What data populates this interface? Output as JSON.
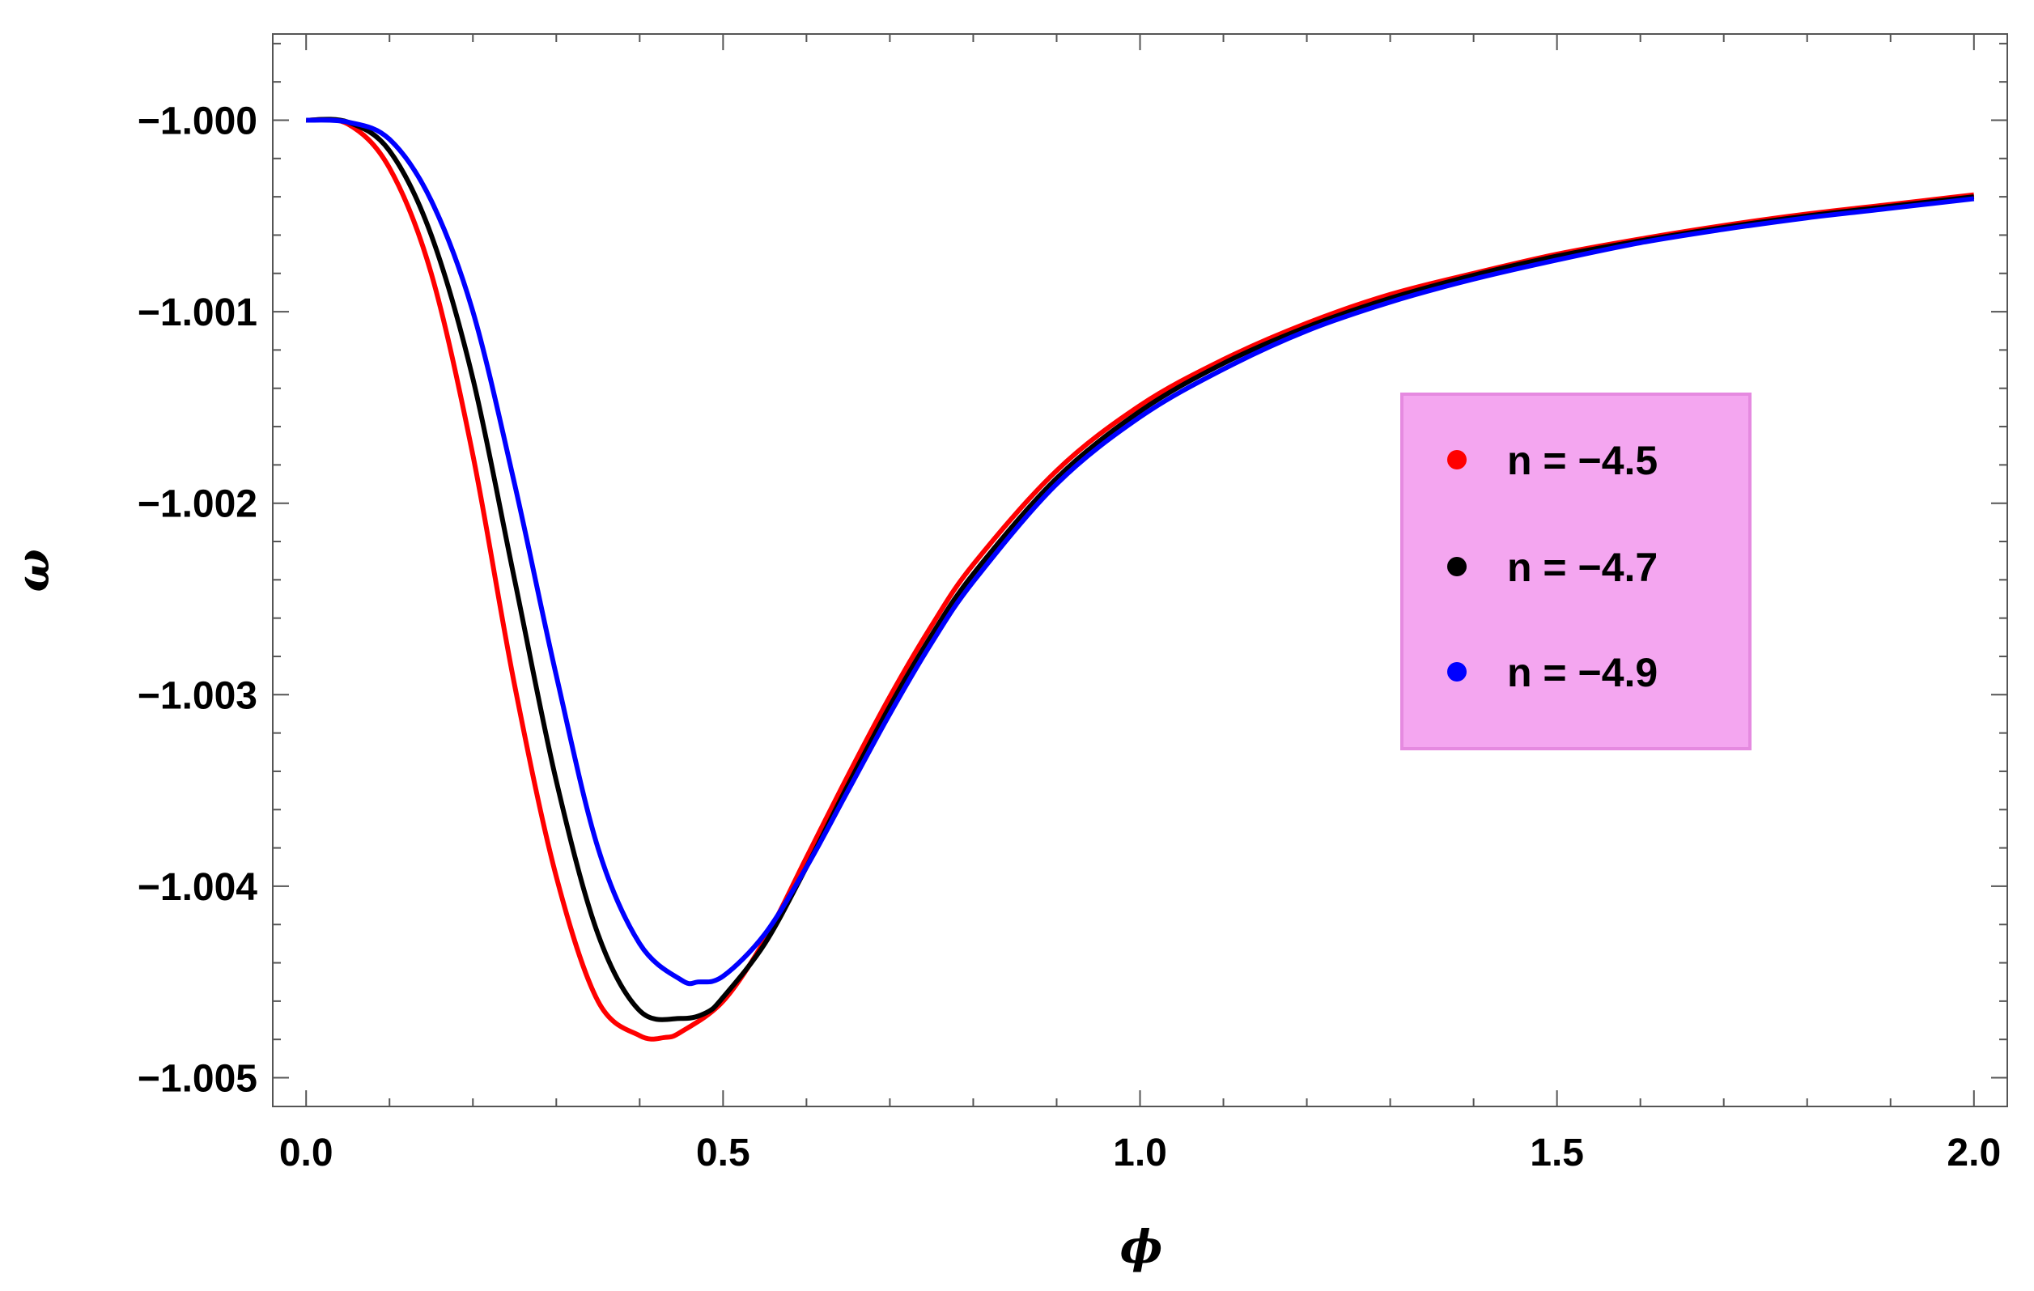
{
  "chart_data": {
    "type": "line",
    "title": "",
    "xlabel": "ϕ",
    "ylabel": "ω",
    "xlim": [
      -0.04,
      2.04
    ],
    "ylim": [
      -1.00515,
      -0.99955
    ],
    "x_ticks": [
      0.0,
      0.5,
      1.0,
      1.5,
      2.0
    ],
    "x_tick_labels": [
      "0.0",
      "0.5",
      "1.0",
      "1.5",
      "2.0"
    ],
    "y_ticks": [
      -1.0,
      -1.001,
      -1.002,
      -1.003,
      -1.004,
      -1.005
    ],
    "y_tick_labels": [
      "−1.000",
      "−1.001",
      "−1.002",
      "−1.003",
      "−1.004",
      "−1.005"
    ],
    "grid": false,
    "legend_placement": "right",
    "legend_background": "#f4a6f0",
    "legend_border": "#e58ae0",
    "series": [
      {
        "name": "n = −4.5",
        "color": "#ff0000",
        "x": [
          0.0,
          0.05,
          0.1,
          0.15,
          0.2,
          0.25,
          0.3,
          0.35,
          0.4,
          0.43,
          0.45,
          0.5,
          0.55,
          0.6,
          0.65,
          0.7,
          0.75,
          0.8,
          0.9,
          1.0,
          1.1,
          1.2,
          1.3,
          1.4,
          1.5,
          1.6,
          1.7,
          1.8,
          1.9,
          2.0
        ],
        "y": [
          -1.0,
          -1.00002,
          -1.00025,
          -1.0008,
          -1.00175,
          -1.00295,
          -1.00395,
          -1.0046,
          -1.00478,
          -1.00479,
          -1.00476,
          -1.0046,
          -1.00428,
          -1.00385,
          -1.00342,
          -1.00301,
          -1.00264,
          -1.00232,
          -1.00183,
          -1.00149,
          -1.00125,
          -1.00106,
          -1.00091,
          -1.0008,
          -1.0007,
          -1.00062,
          -1.00055,
          -1.00049,
          -1.00044,
          -1.00039
        ]
      },
      {
        "name": "n = −4.7",
        "color": "#000000",
        "x": [
          0.0,
          0.05,
          0.1,
          0.15,
          0.2,
          0.25,
          0.3,
          0.35,
          0.4,
          0.45,
          0.48,
          0.5,
          0.55,
          0.6,
          0.65,
          0.7,
          0.75,
          0.8,
          0.9,
          1.0,
          1.1,
          1.2,
          1.3,
          1.4,
          1.5,
          1.6,
          1.7,
          1.8,
          1.9,
          2.0
        ],
        "y": [
          -1.0,
          -1.00001,
          -1.00016,
          -1.0006,
          -1.00135,
          -1.0024,
          -1.00345,
          -1.00425,
          -1.00465,
          -1.00469,
          -1.00466,
          -1.00458,
          -1.0043,
          -1.0039,
          -1.00347,
          -1.00306,
          -1.00269,
          -1.00237,
          -1.00187,
          -1.00152,
          -1.00127,
          -1.00108,
          -1.00093,
          -1.00081,
          -1.00071,
          -1.00063,
          -1.00056,
          -1.0005,
          -1.00045,
          -1.0004
        ]
      },
      {
        "name": "n = −4.9",
        "color": "#0000ff",
        "x": [
          0.0,
          0.05,
          0.1,
          0.15,
          0.2,
          0.25,
          0.3,
          0.35,
          0.4,
          0.45,
          0.47,
          0.5,
          0.55,
          0.6,
          0.65,
          0.7,
          0.75,
          0.8,
          0.9,
          1.0,
          1.1,
          1.2,
          1.3,
          1.4,
          1.5,
          1.6,
          1.7,
          1.8,
          1.9,
          2.0
        ],
        "y": [
          -1.0,
          -1.00001,
          -1.0001,
          -1.00042,
          -1.001,
          -1.0019,
          -1.0029,
          -1.0038,
          -1.0043,
          -1.00449,
          -1.0045,
          -1.00447,
          -1.00425,
          -1.0039,
          -1.0035,
          -1.0031,
          -1.00273,
          -1.00241,
          -1.0019,
          -1.00155,
          -1.0013,
          -1.0011,
          -1.00095,
          -1.00083,
          -1.00073,
          -1.00064,
          -1.00057,
          -1.00051,
          -1.00046,
          -1.00041
        ]
      }
    ]
  }
}
